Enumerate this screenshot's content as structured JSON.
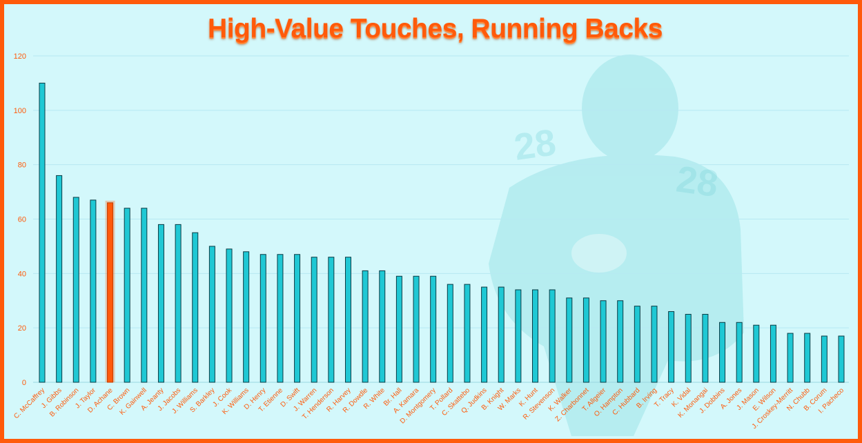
{
  "chart_data": {
    "type": "bar",
    "title": "High-Value Touches, Running Backs",
    "xlabel": "",
    "ylabel": "",
    "ylim": [
      0,
      120
    ],
    "yticks": [
      0,
      20,
      40,
      60,
      80,
      100,
      120
    ],
    "grid": true,
    "highlight": "D. Achane",
    "colors": {
      "bar": "#1fc8d4",
      "bar_outline": "#0b3b44",
      "highlight": "#ff5a0a",
      "frame": "#ff5a0a",
      "background": "#d3f8fb",
      "grid": "#b6e9f2"
    },
    "categories": [
      "C. McCaffrey",
      "J. Gibbs",
      "B. Robinson",
      "J. Taylor",
      "D. Achane",
      "C. Brown",
      "K. Gainwell",
      "A. Jeanty",
      "J. Jacobs",
      "J. Williams",
      "S. Barkley",
      "J. Cook",
      "K. Williams",
      "D. Henry",
      "T. Etienne",
      "D. Swift",
      "J. Warren",
      "T. Henderson",
      "R. Harvey",
      "R. Dowdle",
      "R. White",
      "Br. Hall",
      "A. Kamara",
      "D. Montgomery",
      "T. Pollard",
      "C. Skattebo",
      "Q. Judkins",
      "B. Knight",
      "W. Marks",
      "K. Hunt",
      "R. Stevenson",
      "K. Walker",
      "Z. Charbonnet",
      "T. Allgeier",
      "O. Hampton",
      "C. Hubbard",
      "B. Irving",
      "T. Tracy",
      "K. Vidal",
      "K. Monangai",
      "J. Dobbins",
      "A. Jones",
      "J. Mason",
      "E. Wilson",
      "J. Croskey-Merritt",
      "N. Chubb",
      "B. Corum",
      "I. Pacheco"
    ],
    "values": [
      110,
      76,
      68,
      67,
      66,
      64,
      64,
      58,
      58,
      55,
      50,
      49,
      48,
      47,
      47,
      47,
      46,
      46,
      46,
      41,
      41,
      39,
      39,
      39,
      36,
      36,
      35,
      35,
      34,
      34,
      34,
      31,
      31,
      30,
      30,
      28,
      28,
      26,
      25,
      25,
      22,
      22,
      21,
      21,
      18,
      18,
      17,
      17
    ]
  }
}
